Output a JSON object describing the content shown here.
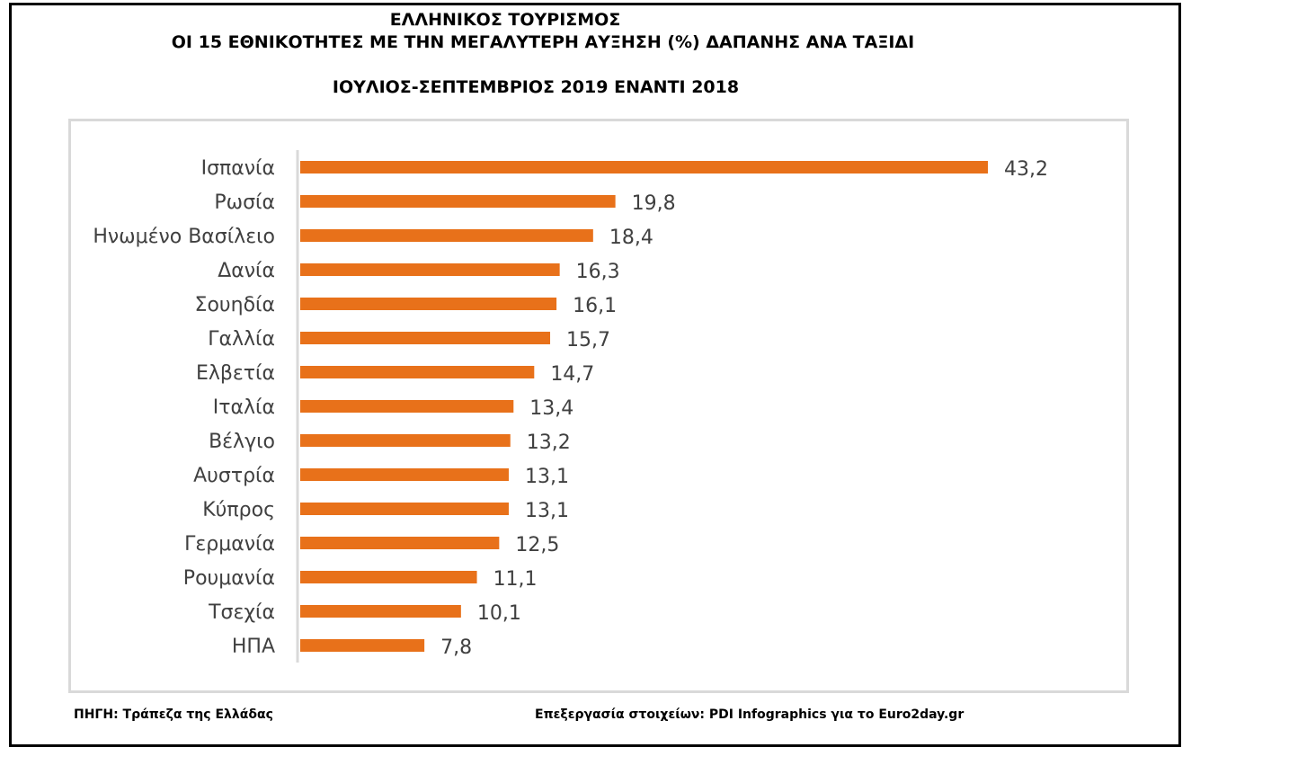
{
  "header": {
    "title": "ΕΛΛΗΝΙΚΟΣ ΤΟΥΡΙΣΜΟΣ",
    "subtitle": "ΟΙ 15 ΕΘΝΙΚΟΤΗΤΕΣ ΜΕ ΤΗΝ ΜΕΓΑΛΥΤΕΡΗ ΑΥΞΗΣΗ (%) ΔΑΠΑΝΗΣ ΑΝΑ ΤΑΞΙΔΙ",
    "period": "ΙΟΥΛΙΟΣ-ΣΕΠΤΕΜΒΡΙΟΣ 2019 ΕΝΑΝΤΙ 2018"
  },
  "footer": {
    "source": "ΠΗΓΗ: Τράπεζα της Ελλάδας",
    "credit": "Επεξεργασία στοιχείων: PDI Infographics για το Euro2day.gr"
  },
  "chart_data": {
    "type": "bar",
    "orientation": "horizontal",
    "title": "ΟΙ 15 ΕΘΝΙΚΟΤΗΤΕΣ ΜΕ ΤΗΝ ΜΕΓΑΛΥΤΕΡΗ ΑΥΞΗΣΗ (%) ΔΑΠΑΝΗΣ ΑΝΑ ΤΑΞΙΔΙ",
    "xlabel": "",
    "ylabel": "",
    "categories": [
      "Ισπανία",
      "Ρωσία",
      "Ηνωμένο Βασίλειο",
      "Δανία",
      "Σουηδία",
      "Γαλλία",
      "Ελβετία",
      "Ιταλία",
      "Βέλγιο",
      "Αυστρία",
      "Κύπρος",
      "Γερμανία",
      "Ρουμανία",
      "Τσεχία",
      "ΗΠΑ"
    ],
    "values": [
      43.2,
      19.8,
      18.4,
      16.3,
      16.1,
      15.7,
      14.7,
      13.4,
      13.2,
      13.1,
      13.1,
      12.5,
      11.1,
      10.1,
      7.8
    ],
    "value_labels": [
      "43,2",
      "19,8",
      "18,4",
      "16,3",
      "16,1",
      "15,7",
      "14,7",
      "13,4",
      "13,2",
      "13,1",
      "13,1",
      "12,5",
      "11,1",
      "10,1",
      "7,8"
    ],
    "xlim": [
      0,
      43.2
    ],
    "grid": false,
    "legend": "none",
    "bar_color": "#E8711A"
  }
}
